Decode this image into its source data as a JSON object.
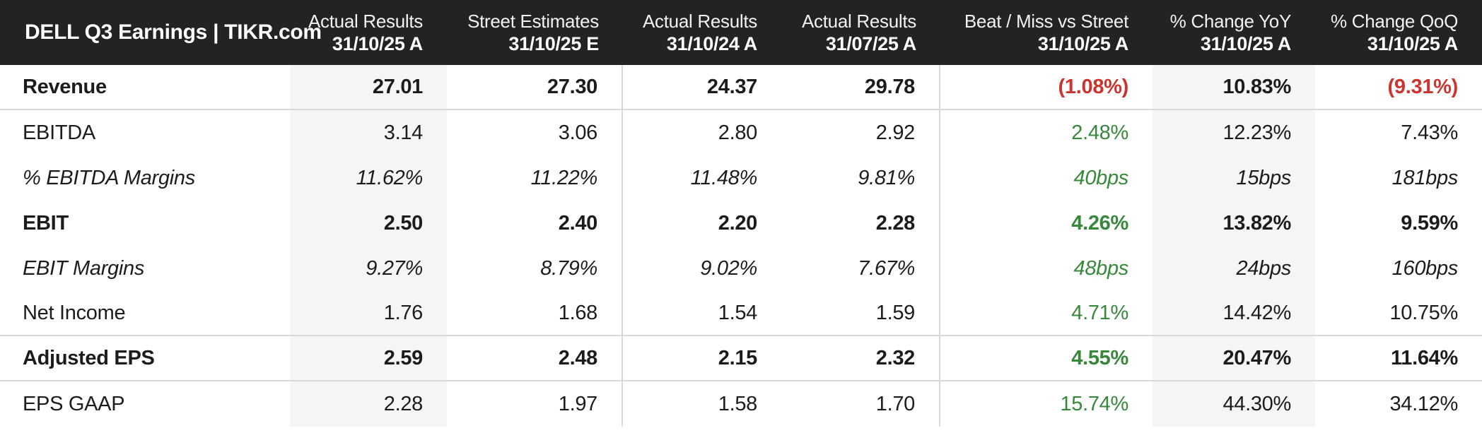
{
  "colors": {
    "green": "#38883c",
    "red": "#cb3530",
    "header_bg": "#232323",
    "stripe_bg": "#f5f5f5",
    "border": "#d9d9d9",
    "text": "#1c1c1c"
  },
  "table": {
    "title": "DELL Q3 Earnings | TIKR.com",
    "columns": [
      {
        "period": "Actual Results",
        "date": "31/10/25 A",
        "shaded": true
      },
      {
        "period": "Street Estimates",
        "date": "31/10/25 E",
        "separator_right": true
      },
      {
        "period": "Actual Results",
        "date": "31/10/24 A"
      },
      {
        "period": "Actual Results",
        "date": "31/07/25 A",
        "separator_right": true
      },
      {
        "period": "Beat / Miss vs Street",
        "date": "31/10/25 A"
      },
      {
        "period": "% Change YoY",
        "date": "31/10/25 A",
        "shaded": true
      },
      {
        "period": "% Change QoQ",
        "date": "31/10/25 A"
      }
    ],
    "rows": [
      {
        "label": "Revenue",
        "style": "bold",
        "divider_below": true,
        "values": [
          "27.01",
          "27.30",
          "24.37",
          "29.78",
          "(1.08%)",
          "10.83%",
          "(9.31%)"
        ],
        "value_colors": [
          null,
          null,
          null,
          null,
          "red",
          null,
          "red"
        ]
      },
      {
        "label": "EBITDA",
        "style": "normal",
        "divider_below": false,
        "values": [
          "3.14",
          "3.06",
          "2.80",
          "2.92",
          "2.48%",
          "12.23%",
          "7.43%"
        ],
        "value_colors": [
          null,
          null,
          null,
          null,
          "green",
          null,
          null
        ]
      },
      {
        "label": "% EBITDA Margins",
        "style": "italic",
        "divider_below": false,
        "values": [
          "11.62%",
          "11.22%",
          "11.48%",
          "9.81%",
          "40bps",
          "15bps",
          "181bps"
        ],
        "value_colors": [
          null,
          null,
          null,
          null,
          "green",
          null,
          null
        ]
      },
      {
        "label": "EBIT",
        "style": "bold",
        "divider_below": false,
        "values": [
          "2.50",
          "2.40",
          "2.20",
          "2.28",
          "4.26%",
          "13.82%",
          "9.59%"
        ],
        "value_colors": [
          null,
          null,
          null,
          null,
          "green",
          null,
          null
        ]
      },
      {
        "label": "EBIT Margins",
        "style": "italic",
        "divider_below": false,
        "values": [
          "9.27%",
          "8.79%",
          "9.02%",
          "7.67%",
          "48bps",
          "24bps",
          "160bps"
        ],
        "value_colors": [
          null,
          null,
          null,
          null,
          "green",
          null,
          null
        ]
      },
      {
        "label": "Net Income",
        "style": "normal",
        "divider_below": true,
        "values": [
          "1.76",
          "1.68",
          "1.54",
          "1.59",
          "4.71%",
          "14.42%",
          "10.75%"
        ],
        "value_colors": [
          null,
          null,
          null,
          null,
          "green",
          null,
          null
        ]
      },
      {
        "label": "Adjusted EPS",
        "style": "bold",
        "divider_below": true,
        "values": [
          "2.59",
          "2.48",
          "2.15",
          "2.32",
          "4.55%",
          "20.47%",
          "11.64%"
        ],
        "value_colors": [
          null,
          null,
          null,
          null,
          "green",
          null,
          null
        ]
      },
      {
        "label": "EPS GAAP",
        "style": "normal",
        "divider_below": false,
        "values": [
          "2.28",
          "1.97",
          "1.58",
          "1.70",
          "15.74%",
          "44.30%",
          "34.12%"
        ],
        "value_colors": [
          null,
          null,
          null,
          null,
          "green",
          null,
          null
        ]
      }
    ]
  },
  "chart_data": {
    "type": "table",
    "title": "DELL Q3 Earnings | TIKR.com",
    "columns": [
      "Actual Results 31/10/25 A",
      "Street Estimates 31/10/25 E",
      "Actual Results 31/10/24 A",
      "Actual Results 31/07/25 A",
      "Beat / Miss vs Street 31/10/25 A",
      "% Change YoY 31/10/25 A",
      "% Change QoQ 31/10/25 A"
    ],
    "rows": [
      [
        "Revenue",
        "27.01",
        "27.30",
        "24.37",
        "29.78",
        "(1.08%)",
        "10.83%",
        "(9.31%)"
      ],
      [
        "EBITDA",
        "3.14",
        "3.06",
        "2.80",
        "2.92",
        "2.48%",
        "12.23%",
        "7.43%"
      ],
      [
        "% EBITDA Margins",
        "11.62%",
        "11.22%",
        "11.48%",
        "9.81%",
        "40bps",
        "15bps",
        "181bps"
      ],
      [
        "EBIT",
        "2.50",
        "2.40",
        "2.20",
        "2.28",
        "4.26%",
        "13.82%",
        "9.59%"
      ],
      [
        "EBIT Margins",
        "9.27%",
        "8.79%",
        "9.02%",
        "7.67%",
        "48bps",
        "24bps",
        "160bps"
      ],
      [
        "Net Income",
        "1.76",
        "1.68",
        "1.54",
        "1.59",
        "4.71%",
        "14.42%",
        "10.75%"
      ],
      [
        "Adjusted EPS",
        "2.59",
        "2.48",
        "2.15",
        "2.32",
        "4.55%",
        "20.47%",
        "11.64%"
      ],
      [
        "EPS GAAP",
        "2.28",
        "1.97",
        "1.58",
        "1.70",
        "15.74%",
        "44.30%",
        "34.12%"
      ]
    ]
  }
}
